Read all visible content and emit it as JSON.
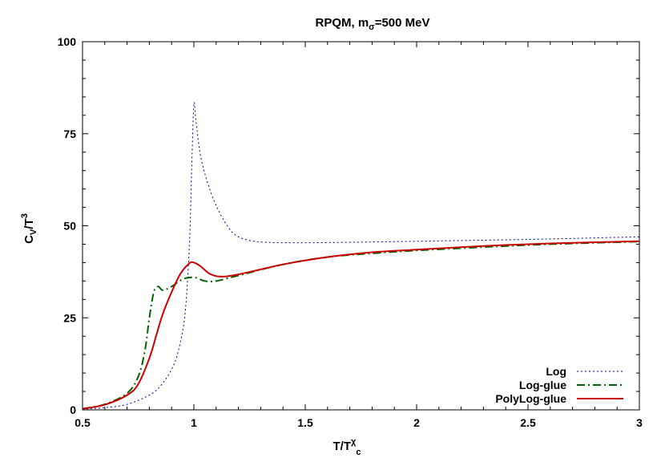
{
  "chart_data": {
    "type": "line",
    "title": "RPQM, mσ=500 MeV",
    "title_parts": {
      "base": "RPQM, m",
      "sub": "σ",
      "rest": "=500 MeV"
    },
    "xlabel": "T/Tχc",
    "xlabel_parts": {
      "base": "T/T",
      "sup": "χ",
      "sub": "c"
    },
    "ylabel": "Cv/T3",
    "ylabel_parts": {
      "base": "C",
      "sub": "V",
      "mid": "/T",
      "sup": "3"
    },
    "xlim": [
      0.5,
      3
    ],
    "ylim": [
      0,
      100
    ],
    "xticks": [
      0.5,
      1,
      1.5,
      2,
      2.5,
      3
    ],
    "xtick_labels": [
      "0.5",
      "1",
      "1.5",
      "2",
      "2.5",
      "3"
    ],
    "yticks": [
      0,
      25,
      50,
      75,
      100
    ],
    "ytick_labels": [
      "0",
      "25",
      "50",
      "75",
      "100"
    ],
    "grid": false,
    "legend_position": "bottom-right",
    "series": [
      {
        "name": "Log",
        "color": "#00008b",
        "style": "dotted",
        "x": [
          0.5,
          0.6,
          0.7,
          0.8,
          0.85,
          0.9,
          0.93,
          0.96,
          0.98,
          0.99,
          1.0,
          1.01,
          1.03,
          1.06,
          1.1,
          1.15,
          1.2,
          1.3,
          1.5,
          1.8,
          2.0,
          2.5,
          3.0
        ],
        "y": [
          0.2,
          0.6,
          1.5,
          4.0,
          6.5,
          11.0,
          16.0,
          26.0,
          45.0,
          65.0,
          83.0,
          78.0,
          69.0,
          62.0,
          55.5,
          50.0,
          47.0,
          45.6,
          45.4,
          45.6,
          45.8,
          46.3,
          47.0
        ]
      },
      {
        "name": "Log-glue",
        "color": "#006400",
        "style": "dashdot",
        "x": [
          0.5,
          0.6,
          0.7,
          0.75,
          0.78,
          0.8,
          0.82,
          0.84,
          0.86,
          0.9,
          0.95,
          1.0,
          1.05,
          1.1,
          1.2,
          1.4,
          1.6,
          1.8,
          2.0,
          2.3,
          2.6,
          3.0
        ],
        "y": [
          0.3,
          1.5,
          4.5,
          9.0,
          16.0,
          25.0,
          32.0,
          33.5,
          32.5,
          33.5,
          35.5,
          36.0,
          35.0,
          35.0,
          36.5,
          39.5,
          41.5,
          42.5,
          43.3,
          44.2,
          45.0,
          45.7
        ]
      },
      {
        "name": "PolyLog-glue",
        "color": "#cc0000",
        "style": "solid",
        "x": [
          0.5,
          0.6,
          0.7,
          0.75,
          0.8,
          0.83,
          0.86,
          0.9,
          0.94,
          0.98,
          1.0,
          1.03,
          1.07,
          1.12,
          1.2,
          1.4,
          1.6,
          1.8,
          2.0,
          2.3,
          2.6,
          3.0
        ],
        "y": [
          0.3,
          1.4,
          4.0,
          7.0,
          14.0,
          20.0,
          26.0,
          32.0,
          37.0,
          39.8,
          40.0,
          39.0,
          37.0,
          36.2,
          36.8,
          39.5,
          41.5,
          42.8,
          43.5,
          44.5,
          45.2,
          45.8
        ]
      }
    ]
  }
}
